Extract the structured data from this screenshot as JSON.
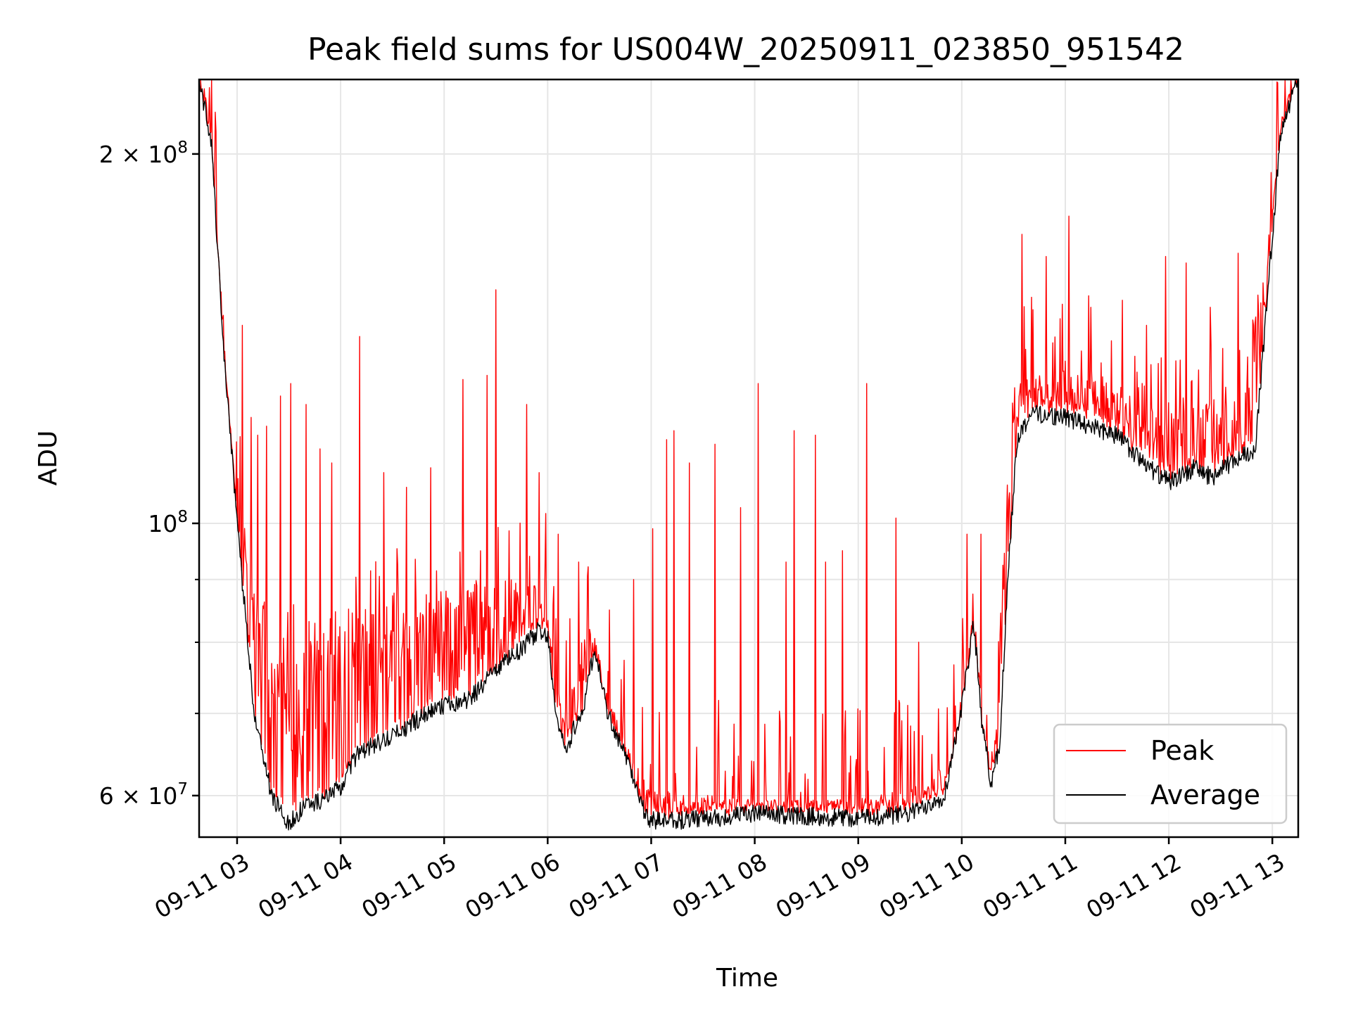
{
  "chart_data": {
    "type": "line",
    "title": "Peak field sums for US004W_20250911_023850_951542",
    "xlabel": "Time",
    "ylabel": "ADU",
    "x_axis": {
      "type": "time",
      "range": [
        "09-11 02:38",
        "09-11 13:15"
      ],
      "ticks": [
        {
          "value": "09-11 03",
          "label": "09-11 03"
        },
        {
          "value": "09-11 04",
          "label": "09-11 04"
        },
        {
          "value": "09-11 05",
          "label": "09-11 05"
        },
        {
          "value": "09-11 06",
          "label": "09-11 06"
        },
        {
          "value": "09-11 07",
          "label": "09-11 07"
        },
        {
          "value": "09-11 08",
          "label": "09-11 08"
        },
        {
          "value": "09-11 09",
          "label": "09-11 09"
        },
        {
          "value": "09-11 10",
          "label": "09-11 10"
        },
        {
          "value": "09-11 11",
          "label": "09-11 11"
        },
        {
          "value": "09-11 12",
          "label": "09-11 12"
        },
        {
          "value": "09-11 13",
          "label": "09-11 13"
        }
      ]
    },
    "y_axis": {
      "scale": "log",
      "range": [
        55500000,
        230000000
      ],
      "major_ticks": [
        {
          "value": 60000000,
          "label_base": "6 × 10",
          "label_exp": "7"
        },
        {
          "value": 100000000,
          "label_base": "10",
          "label_exp": "8"
        },
        {
          "value": 200000000,
          "label_base": "2 × 10",
          "label_exp": "8"
        }
      ],
      "minor_ticks": [
        70000000,
        80000000,
        90000000
      ]
    },
    "grid": true,
    "legend_position": "lower right",
    "series": [
      {
        "name": "Peak",
        "color": "#ff0000",
        "baseline": [
          [
            "09-11 02:38",
            230000000
          ],
          [
            "09-11 02:45",
            205000000
          ],
          [
            "09-11 02:52",
            140000000
          ],
          [
            "09-11 03:00",
            102000000
          ],
          [
            "09-11 03:10",
            80000000
          ],
          [
            "09-11 03:25",
            70000000
          ],
          [
            "09-11 03:40",
            71000000
          ],
          [
            "09-11 04:00",
            74000000
          ],
          [
            "09-11 04:30",
            78000000
          ],
          [
            "09-11 05:00",
            80000000
          ],
          [
            "09-11 05:30",
            83000000
          ],
          [
            "09-11 05:50",
            86000000
          ],
          [
            "09-11 06:00",
            84000000
          ],
          [
            "09-11 06:05",
            72000000
          ],
          [
            "09-11 06:10",
            68000000
          ],
          [
            "09-11 06:18",
            73000000
          ],
          [
            "09-11 06:25",
            80000000
          ],
          [
            "09-11 06:35",
            70000000
          ],
          [
            "09-11 06:45",
            65000000
          ],
          [
            "09-11 06:50",
            59500000
          ],
          [
            "09-11 07:00",
            59000000
          ],
          [
            "09-11 08:00",
            58800000
          ],
          [
            "09-11 09:00",
            58600000
          ],
          [
            "09-11 09:40",
            60000000
          ],
          [
            "09-11 09:55",
            63000000
          ],
          [
            "09-11 10:05",
            75000000
          ],
          [
            "09-11 10:10",
            67000000
          ],
          [
            "09-11 10:15",
            62500000
          ],
          [
            "09-11 10:20",
            66000000
          ],
          [
            "09-11 10:25",
            95000000
          ],
          [
            "09-11 10:30",
            118000000
          ],
          [
            "09-11 10:35",
            128000000
          ],
          [
            "09-11 11:00",
            128000000
          ],
          [
            "09-11 11:30",
            124000000
          ],
          [
            "09-11 11:45",
            118000000
          ],
          [
            "09-11 12:00",
            118000000
          ],
          [
            "09-11 12:30",
            118000000
          ],
          [
            "09-11 12:45",
            122000000
          ],
          [
            "09-11 12:55",
            150000000
          ],
          [
            "09-11 13:05",
            210000000
          ],
          [
            "09-11 13:15",
            230000000
          ]
        ],
        "spikes": [
          [
            "09-11 03:03",
            145000000
          ],
          [
            "09-11 03:08",
            122000000
          ],
          [
            "09-11 03:12",
            118000000
          ],
          [
            "09-11 03:17",
            120000000
          ],
          [
            "09-11 03:25",
            127000000
          ],
          [
            "09-11 03:31",
            130000000
          ],
          [
            "09-11 03:40",
            125000000
          ],
          [
            "09-11 03:48",
            115000000
          ],
          [
            "09-11 03:55",
            112000000
          ],
          [
            "09-11 04:11",
            142000000
          ],
          [
            "09-11 04:25",
            110000000
          ],
          [
            "09-11 04:38",
            107000000
          ],
          [
            "09-11 04:52",
            111000000
          ],
          [
            "09-11 05:11",
            131000000
          ],
          [
            "09-11 05:25",
            132000000
          ],
          [
            "09-11 05:30",
            155000000
          ],
          [
            "09-11 05:48",
            125000000
          ],
          [
            "09-11 05:55",
            110000000
          ],
          [
            "09-11 06:06",
            98000000
          ],
          [
            "09-11 06:18",
            93000000
          ],
          [
            "09-11 06:36",
            85000000
          ],
          [
            "09-11 06:50",
            90000000
          ],
          [
            "09-11 07:01",
            99000000
          ],
          [
            "09-11 07:09",
            117000000
          ],
          [
            "09-11 07:13",
            119000000
          ],
          [
            "09-11 07:22",
            112000000
          ],
          [
            "09-11 07:37",
            116000000
          ],
          [
            "09-11 07:52",
            103000000
          ],
          [
            "09-11 08:02",
            130000000
          ],
          [
            "09-11 08:18",
            93000000
          ],
          [
            "09-11 08:23",
            119000000
          ],
          [
            "09-11 08:35",
            118000000
          ],
          [
            "09-11 08:41",
            93000000
          ],
          [
            "09-11 08:51",
            95000000
          ],
          [
            "09-11 09:05",
            130000000
          ],
          [
            "09-11 09:22",
            101000000
          ],
          [
            "09-11 09:35",
            80000000
          ],
          [
            "09-11 10:03",
            98000000
          ],
          [
            "09-11 10:11",
            98000000
          ],
          [
            "09-11 10:32",
            121000000
          ],
          [
            "09-11 10:35",
            172000000
          ],
          [
            "09-11 10:49",
            165000000
          ],
          [
            "09-11 11:02",
            178000000
          ],
          [
            "09-11 11:15",
            150000000
          ],
          [
            "09-11 11:33",
            152000000
          ],
          [
            "09-11 11:47",
            145000000
          ],
          [
            "09-11 11:58",
            165000000
          ],
          [
            "09-11 12:10",
            163000000
          ],
          [
            "09-11 12:24",
            150000000
          ],
          [
            "09-11 12:40",
            166000000
          ],
          [
            "09-11 12:52",
            148000000
          ],
          [
            "09-11 12:57",
            130000000
          ]
        ]
      },
      {
        "name": "Average",
        "color": "#000000",
        "baseline": [
          [
            "09-11 02:38",
            230000000
          ],
          [
            "09-11 02:45",
            205000000
          ],
          [
            "09-11 02:52",
            140000000
          ],
          [
            "09-11 03:00",
            100000000
          ],
          [
            "09-11 03:10",
            70000000
          ],
          [
            "09-11 03:20",
            60000000
          ],
          [
            "09-11 03:30",
            57000000
          ],
          [
            "09-11 03:40",
            59000000
          ],
          [
            "09-11 03:50",
            59500000
          ],
          [
            "09-11 04:00",
            61000000
          ],
          [
            "09-11 04:10",
            65000000
          ],
          [
            "09-11 04:30",
            67000000
          ],
          [
            "09-11 04:50",
            70000000
          ],
          [
            "09-11 05:00",
            71000000
          ],
          [
            "09-11 05:15",
            72000000
          ],
          [
            "09-11 05:30",
            76000000
          ],
          [
            "09-11 05:45",
            79000000
          ],
          [
            "09-11 05:55",
            82000000
          ],
          [
            "09-11 06:00",
            81000000
          ],
          [
            "09-11 06:05",
            70000000
          ],
          [
            "09-11 06:10",
            65000000
          ],
          [
            "09-11 06:15",
            68000000
          ],
          [
            "09-11 06:20",
            70000000
          ],
          [
            "09-11 06:27",
            79000000
          ],
          [
            "09-11 06:35",
            70000000
          ],
          [
            "09-11 06:45",
            64500000
          ],
          [
            "09-11 06:50",
            62000000
          ],
          [
            "09-11 06:58",
            57200000
          ],
          [
            "09-11 07:30",
            57400000
          ],
          [
            "09-11 08:00",
            58000000
          ],
          [
            "09-11 09:00",
            57500000
          ],
          [
            "09-11 09:30",
            58000000
          ],
          [
            "09-11 09:50",
            60000000
          ],
          [
            "09-11 10:00",
            71000000
          ],
          [
            "09-11 10:07",
            83000000
          ],
          [
            "09-11 10:12",
            68000000
          ],
          [
            "09-11 10:17",
            61500000
          ],
          [
            "09-11 10:22",
            66000000
          ],
          [
            "09-11 10:27",
            92000000
          ],
          [
            "09-11 10:32",
            117000000
          ],
          [
            "09-11 10:40",
            123000000
          ],
          [
            "09-11 11:00",
            122000000
          ],
          [
            "09-11 11:30",
            118000000
          ],
          [
            "09-11 11:45",
            112000000
          ],
          [
            "09-11 12:00",
            108000000
          ],
          [
            "09-11 12:15",
            111000000
          ],
          [
            "09-11 12:25",
            109000000
          ],
          [
            "09-11 12:40",
            113000000
          ],
          [
            "09-11 12:50",
            115000000
          ],
          [
            "09-11 12:55",
            140000000
          ],
          [
            "09-11 13:05",
            210000000
          ],
          [
            "09-11 13:15",
            230000000
          ]
        ]
      }
    ]
  },
  "legend": {
    "items": [
      {
        "label": "Peak",
        "color": "#ff0000"
      },
      {
        "label": "Average",
        "color": "#000000"
      }
    ]
  }
}
